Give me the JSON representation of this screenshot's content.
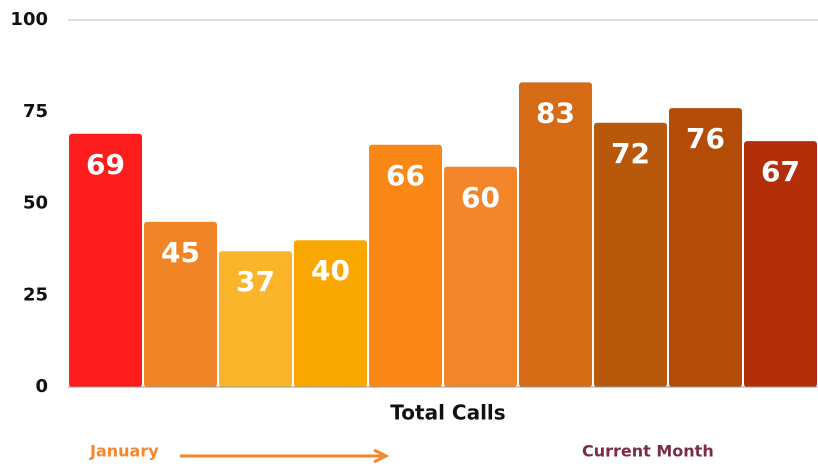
{
  "chart_data": {
    "type": "bar",
    "x_label": "Total Calls",
    "values": [
      69,
      45,
      37,
      40,
      66,
      60,
      83,
      72,
      76,
      67
    ],
    "colors": [
      "#ff1c1c",
      "#f08426",
      "#fbb52a",
      "#f8a800",
      "#fb8717",
      "#f3852a",
      "#d56c15",
      "#b8580a",
      "#b34c06",
      "#b32f0a"
    ],
    "ylim": [
      0,
      100
    ],
    "yticks": [
      0,
      25,
      50,
      75,
      100
    ],
    "grid": false,
    "annotations": [
      "January",
      "Current Month"
    ]
  }
}
